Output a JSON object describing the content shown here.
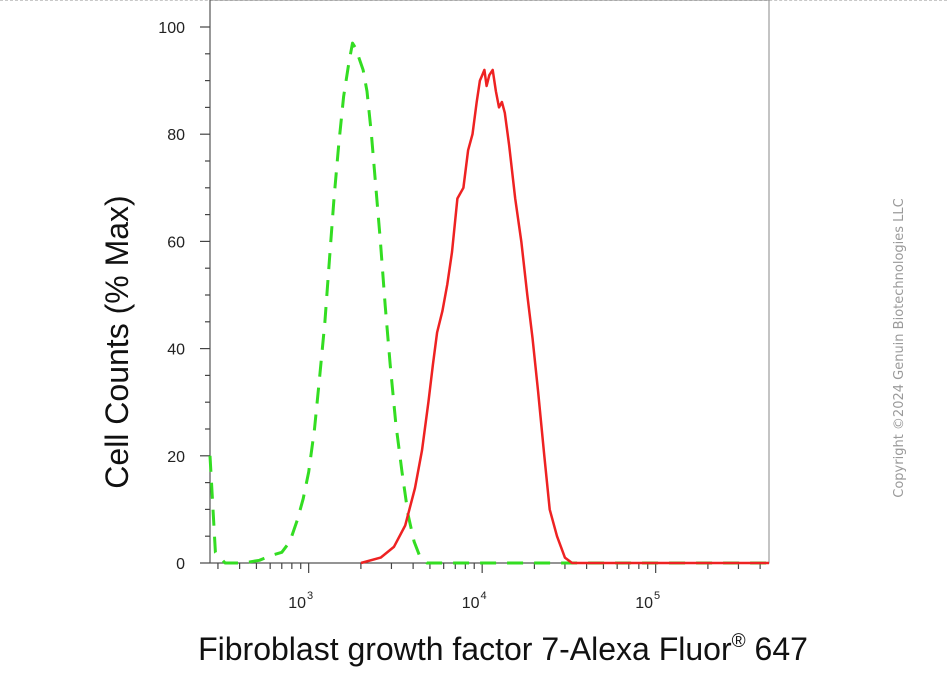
{
  "chart_data": {
    "type": "line",
    "title": "",
    "xlabel": "Fibroblast growth factor 7-Alexa Fluor® 647",
    "ylabel": "Cell Counts (% Max)",
    "x_scale": "log",
    "xlim": [
      270,
      450000
    ],
    "ylim": [
      0,
      105
    ],
    "y_ticks": [
      "0",
      "20",
      "40",
      "60",
      "80",
      "100"
    ],
    "x_tick_labels": [
      {
        "base": "10",
        "exp": "3",
        "value": 1000
      },
      {
        "base": "10",
        "exp": "4",
        "value": 10000
      },
      {
        "base": "10",
        "exp": "5",
        "value": 100000
      }
    ],
    "grid": false,
    "legend": "none",
    "series": [
      {
        "color": "#33dd22",
        "style": "dashed",
        "points": [
          [
            270,
            20
          ],
          [
            290,
            2
          ],
          [
            330,
            0
          ],
          [
            420,
            0
          ],
          [
            520,
            0.5
          ],
          [
            620,
            1.5
          ],
          [
            700,
            2
          ],
          [
            780,
            4
          ],
          [
            860,
            8
          ],
          [
            930,
            12
          ],
          [
            1000,
            17
          ],
          [
            1080,
            25
          ],
          [
            1160,
            35
          ],
          [
            1240,
            45
          ],
          [
            1320,
            57
          ],
          [
            1400,
            68
          ],
          [
            1490,
            78
          ],
          [
            1590,
            87
          ],
          [
            1700,
            93
          ],
          [
            1790,
            97
          ],
          [
            1870,
            96
          ],
          [
            1960,
            94
          ],
          [
            2060,
            92
          ],
          [
            2170,
            88
          ],
          [
            2300,
            80
          ],
          [
            2440,
            70
          ],
          [
            2590,
            60
          ],
          [
            2760,
            48
          ],
          [
            2950,
            37
          ],
          [
            3180,
            26
          ],
          [
            3450,
            17
          ],
          [
            3740,
            9
          ],
          [
            4050,
            4
          ],
          [
            4400,
            1
          ],
          [
            4800,
            0
          ],
          [
            6000,
            0
          ],
          [
            12000,
            0
          ],
          [
            30000,
            0
          ],
          [
            100000,
            0
          ],
          [
            450000,
            0
          ]
        ]
      },
      {
        "color": "#ee2222",
        "style": "solid",
        "points": [
          [
            2000,
            0
          ],
          [
            2600,
            1
          ],
          [
            3100,
            3
          ],
          [
            3600,
            7
          ],
          [
            4100,
            14
          ],
          [
            4500,
            21
          ],
          [
            4900,
            30
          ],
          [
            5200,
            37
          ],
          [
            5500,
            43
          ],
          [
            5900,
            47
          ],
          [
            6300,
            52
          ],
          [
            6700,
            58
          ],
          [
            7200,
            68
          ],
          [
            7800,
            70
          ],
          [
            8300,
            77
          ],
          [
            8800,
            80
          ],
          [
            9300,
            86
          ],
          [
            9700,
            90
          ],
          [
            10000,
            91
          ],
          [
            10300,
            92
          ],
          [
            10600,
            89
          ],
          [
            11000,
            91
          ],
          [
            11500,
            92
          ],
          [
            12000,
            88
          ],
          [
            12500,
            85
          ],
          [
            13000,
            86
          ],
          [
            13500,
            84
          ],
          [
            14300,
            78
          ],
          [
            15500,
            68
          ],
          [
            16800,
            60
          ],
          [
            18200,
            50
          ],
          [
            19500,
            42
          ],
          [
            21000,
            32
          ],
          [
            22800,
            20
          ],
          [
            24500,
            10
          ],
          [
            27000,
            5
          ],
          [
            30000,
            1
          ],
          [
            33000,
            0
          ],
          [
            60000,
            0
          ],
          [
            150000,
            0
          ],
          [
            450000,
            0
          ]
        ]
      }
    ]
  },
  "watermark": "Copyright ©2024 Genuin Biotechnologies LLC"
}
